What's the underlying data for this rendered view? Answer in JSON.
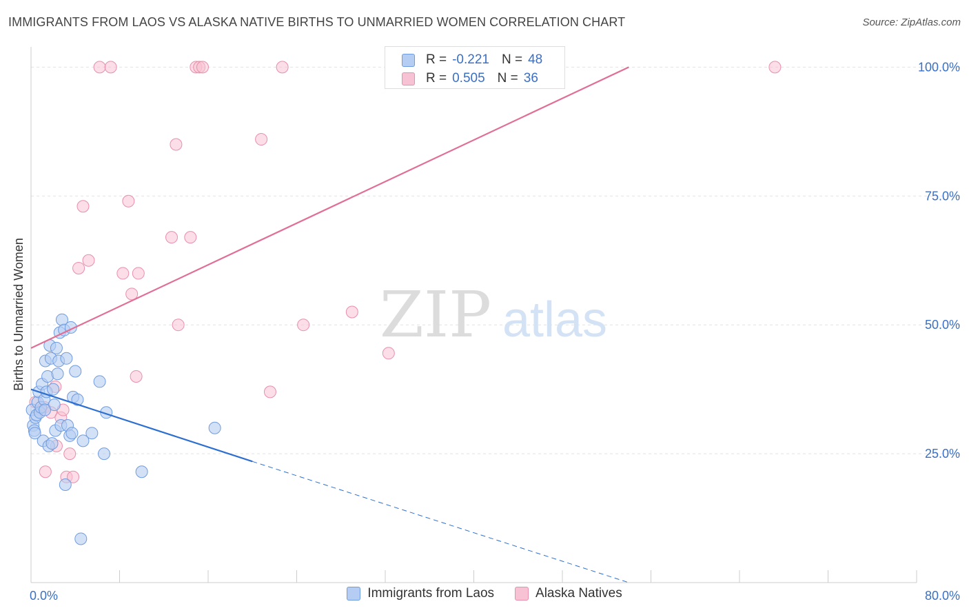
{
  "title": "IMMIGRANTS FROM LAOS VS ALASKA NATIVE BIRTHS TO UNMARRIED WOMEN CORRELATION CHART",
  "source": "Source: ZipAtlas.com",
  "watermark": {
    "zip": "ZIP",
    "atlas": "atlas"
  },
  "colors": {
    "blue_fill": "#b5cdf2",
    "blue_stroke": "#6e9be0",
    "blue_line": "#2d6fd0",
    "pink_fill": "#f7c3d4",
    "pink_stroke": "#e98eab",
    "pink_line": "#e06e97",
    "tick_label": "#3a6fc4",
    "grid": "#e2e2e2"
  },
  "correlation_box": {
    "rows": [
      {
        "r_label": "R =",
        "r_value": "-0.221",
        "n_label": "N =",
        "n_value": "48"
      },
      {
        "r_label": "R =",
        "r_value": "0.505",
        "n_label": "N =",
        "n_value": "36"
      }
    ]
  },
  "legend": {
    "items": [
      "Immigrants from Laos",
      "Alaska Natives"
    ]
  },
  "chart_data": {
    "type": "scatter",
    "title": "IMMIGRANTS FROM LAOS VS ALASKA NATIVE BIRTHS TO UNMARRIED WOMEN CORRELATION CHART",
    "xlabel": "",
    "ylabel": "Births to Unmarried Women",
    "xlim": [
      0,
      80
    ],
    "ylim": [
      0,
      105
    ],
    "x_tick_labels": [
      {
        "value": 0,
        "label": "0.0%"
      },
      {
        "value": 80,
        "label": "80.0%"
      }
    ],
    "y_tick_labels": [
      {
        "value": 25,
        "label": "25.0%"
      },
      {
        "value": 50,
        "label": "50.0%"
      },
      {
        "value": 75,
        "label": "75.0%"
      },
      {
        "value": 100,
        "label": "100.0%"
      }
    ],
    "grid": "horizontal dashed",
    "legend_position": "bottom",
    "series": [
      {
        "name": "Immigrants from Laos",
        "r": -0.221,
        "n": 48,
        "trend": {
          "x0": 0,
          "y0": 37.5,
          "x1": 20,
          "y1": 23.5,
          "dashed_to_x": 54,
          "dashed_to_y": 0
        },
        "points": [
          [
            0.1,
            33.5
          ],
          [
            0.2,
            30.5
          ],
          [
            0.3,
            29.5
          ],
          [
            0.4,
            32.0
          ],
          [
            0.5,
            32.5
          ],
          [
            0.6,
            35.0
          ],
          [
            0.7,
            37.0
          ],
          [
            0.8,
            33.0
          ],
          [
            0.9,
            34.0
          ],
          [
            1.0,
            38.5
          ],
          [
            1.1,
            27.5
          ],
          [
            1.2,
            35.5
          ],
          [
            1.3,
            43.0
          ],
          [
            1.4,
            37.0
          ],
          [
            1.5,
            40.0
          ],
          [
            1.6,
            26.5
          ],
          [
            1.7,
            46.0
          ],
          [
            1.8,
            43.5
          ],
          [
            1.9,
            27.0
          ],
          [
            2.0,
            37.5
          ],
          [
            2.1,
            34.5
          ],
          [
            2.2,
            29.5
          ],
          [
            2.3,
            45.5
          ],
          [
            2.4,
            40.5
          ],
          [
            2.5,
            43.0
          ],
          [
            2.6,
            48.5
          ],
          [
            2.7,
            30.5
          ],
          [
            2.8,
            51.0
          ],
          [
            3.0,
            49.0
          ],
          [
            3.1,
            19.0
          ],
          [
            3.2,
            43.5
          ],
          [
            3.3,
            30.5
          ],
          [
            3.5,
            28.5
          ],
          [
            3.6,
            49.5
          ],
          [
            3.7,
            29.0
          ],
          [
            3.8,
            36.0
          ],
          [
            4.0,
            41.0
          ],
          [
            4.2,
            35.5
          ],
          [
            4.5,
            8.5
          ],
          [
            4.7,
            27.5
          ],
          [
            5.5,
            29.0
          ],
          [
            6.2,
            39.0
          ],
          [
            6.6,
            25.0
          ],
          [
            6.8,
            33.0
          ],
          [
            10.0,
            21.5
          ],
          [
            16.6,
            30.0
          ],
          [
            0.35,
            29.0
          ],
          [
            1.25,
            33.5
          ]
        ]
      },
      {
        "name": "Alaska Natives",
        "r": 0.505,
        "n": 36,
        "trend": {
          "x0": 0,
          "y0": 45.5,
          "x1": 54,
          "y1": 100
        },
        "points": [
          [
            0.4,
            35.0
          ],
          [
            0.9,
            33.5
          ],
          [
            1.2,
            34.0
          ],
          [
            1.3,
            21.5
          ],
          [
            1.8,
            33.0
          ],
          [
            2.2,
            38.0
          ],
          [
            2.3,
            26.5
          ],
          [
            2.7,
            32.0
          ],
          [
            2.9,
            33.5
          ],
          [
            3.2,
            20.5
          ],
          [
            3.5,
            25.0
          ],
          [
            3.8,
            20.5
          ],
          [
            4.3,
            61.0
          ],
          [
            4.7,
            73.0
          ],
          [
            5.2,
            62.5
          ],
          [
            6.2,
            100.0
          ],
          [
            7.2,
            100.0
          ],
          [
            8.3,
            60.0
          ],
          [
            8.8,
            74.0
          ],
          [
            9.1,
            56.0
          ],
          [
            9.5,
            40.0
          ],
          [
            9.7,
            60.0
          ],
          [
            13.1,
            85.0
          ],
          [
            12.7,
            67.0
          ],
          [
            13.3,
            50.0
          ],
          [
            14.4,
            67.0
          ],
          [
            14.9,
            100.0
          ],
          [
            15.2,
            100.0
          ],
          [
            20.8,
            86.0
          ],
          [
            21.6,
            37.0
          ],
          [
            22.7,
            100.0
          ],
          [
            24.6,
            50.0
          ],
          [
            29.0,
            52.5
          ],
          [
            32.3,
            44.5
          ],
          [
            67.2,
            100.0
          ],
          [
            15.5,
            100.0
          ]
        ]
      }
    ]
  }
}
